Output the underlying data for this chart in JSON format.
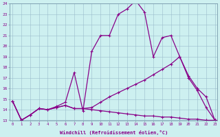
{
  "xlabel": "Windchill (Refroidissement éolien,°C)",
  "background_color": "#cdf0f0",
  "grid_color": "#99bbcc",
  "line_color": "#880088",
  "xmin": 0,
  "xmax": 23,
  "ymin": 13,
  "ymax": 24,
  "line1_x": [
    0,
    1,
    2,
    3,
    4,
    5,
    6,
    7,
    8,
    9,
    10,
    11,
    12,
    13,
    14,
    15,
    16,
    17,
    18,
    19,
    20,
    21,
    22,
    23
  ],
  "line1_y": [
    14.8,
    13.0,
    13.5,
    14.1,
    14.0,
    14.3,
    14.7,
    17.5,
    13.9,
    19.5,
    21.0,
    21.0,
    23.0,
    23.5,
    24.3,
    23.2,
    19.0,
    20.8,
    21.0,
    19.0,
    17.0,
    15.8,
    14.2,
    13.0
  ],
  "line2_x": [
    0,
    1,
    2,
    3,
    4,
    5,
    6,
    7,
    8,
    9,
    10,
    11,
    12,
    13,
    14,
    15,
    16,
    17,
    18,
    19,
    20,
    21,
    22,
    23
  ],
  "line2_y": [
    14.8,
    13.0,
    13.5,
    14.1,
    14.0,
    14.2,
    14.4,
    14.1,
    14.1,
    14.2,
    14.7,
    15.2,
    15.6,
    16.0,
    16.4,
    16.8,
    17.3,
    17.8,
    18.3,
    19.0,
    17.2,
    16.0,
    15.2,
    13.0
  ],
  "line3_x": [
    0,
    1,
    2,
    3,
    4,
    5,
    6,
    7,
    8,
    9,
    10,
    11,
    12,
    13,
    14,
    15,
    16,
    17,
    18,
    19,
    20,
    21,
    22,
    23
  ],
  "line3_y": [
    14.8,
    13.0,
    13.5,
    14.1,
    14.0,
    14.2,
    14.4,
    14.1,
    14.1,
    14.0,
    13.9,
    13.8,
    13.7,
    13.6,
    13.5,
    13.4,
    13.4,
    13.3,
    13.3,
    13.2,
    13.1,
    13.1,
    13.0,
    13.0
  ]
}
